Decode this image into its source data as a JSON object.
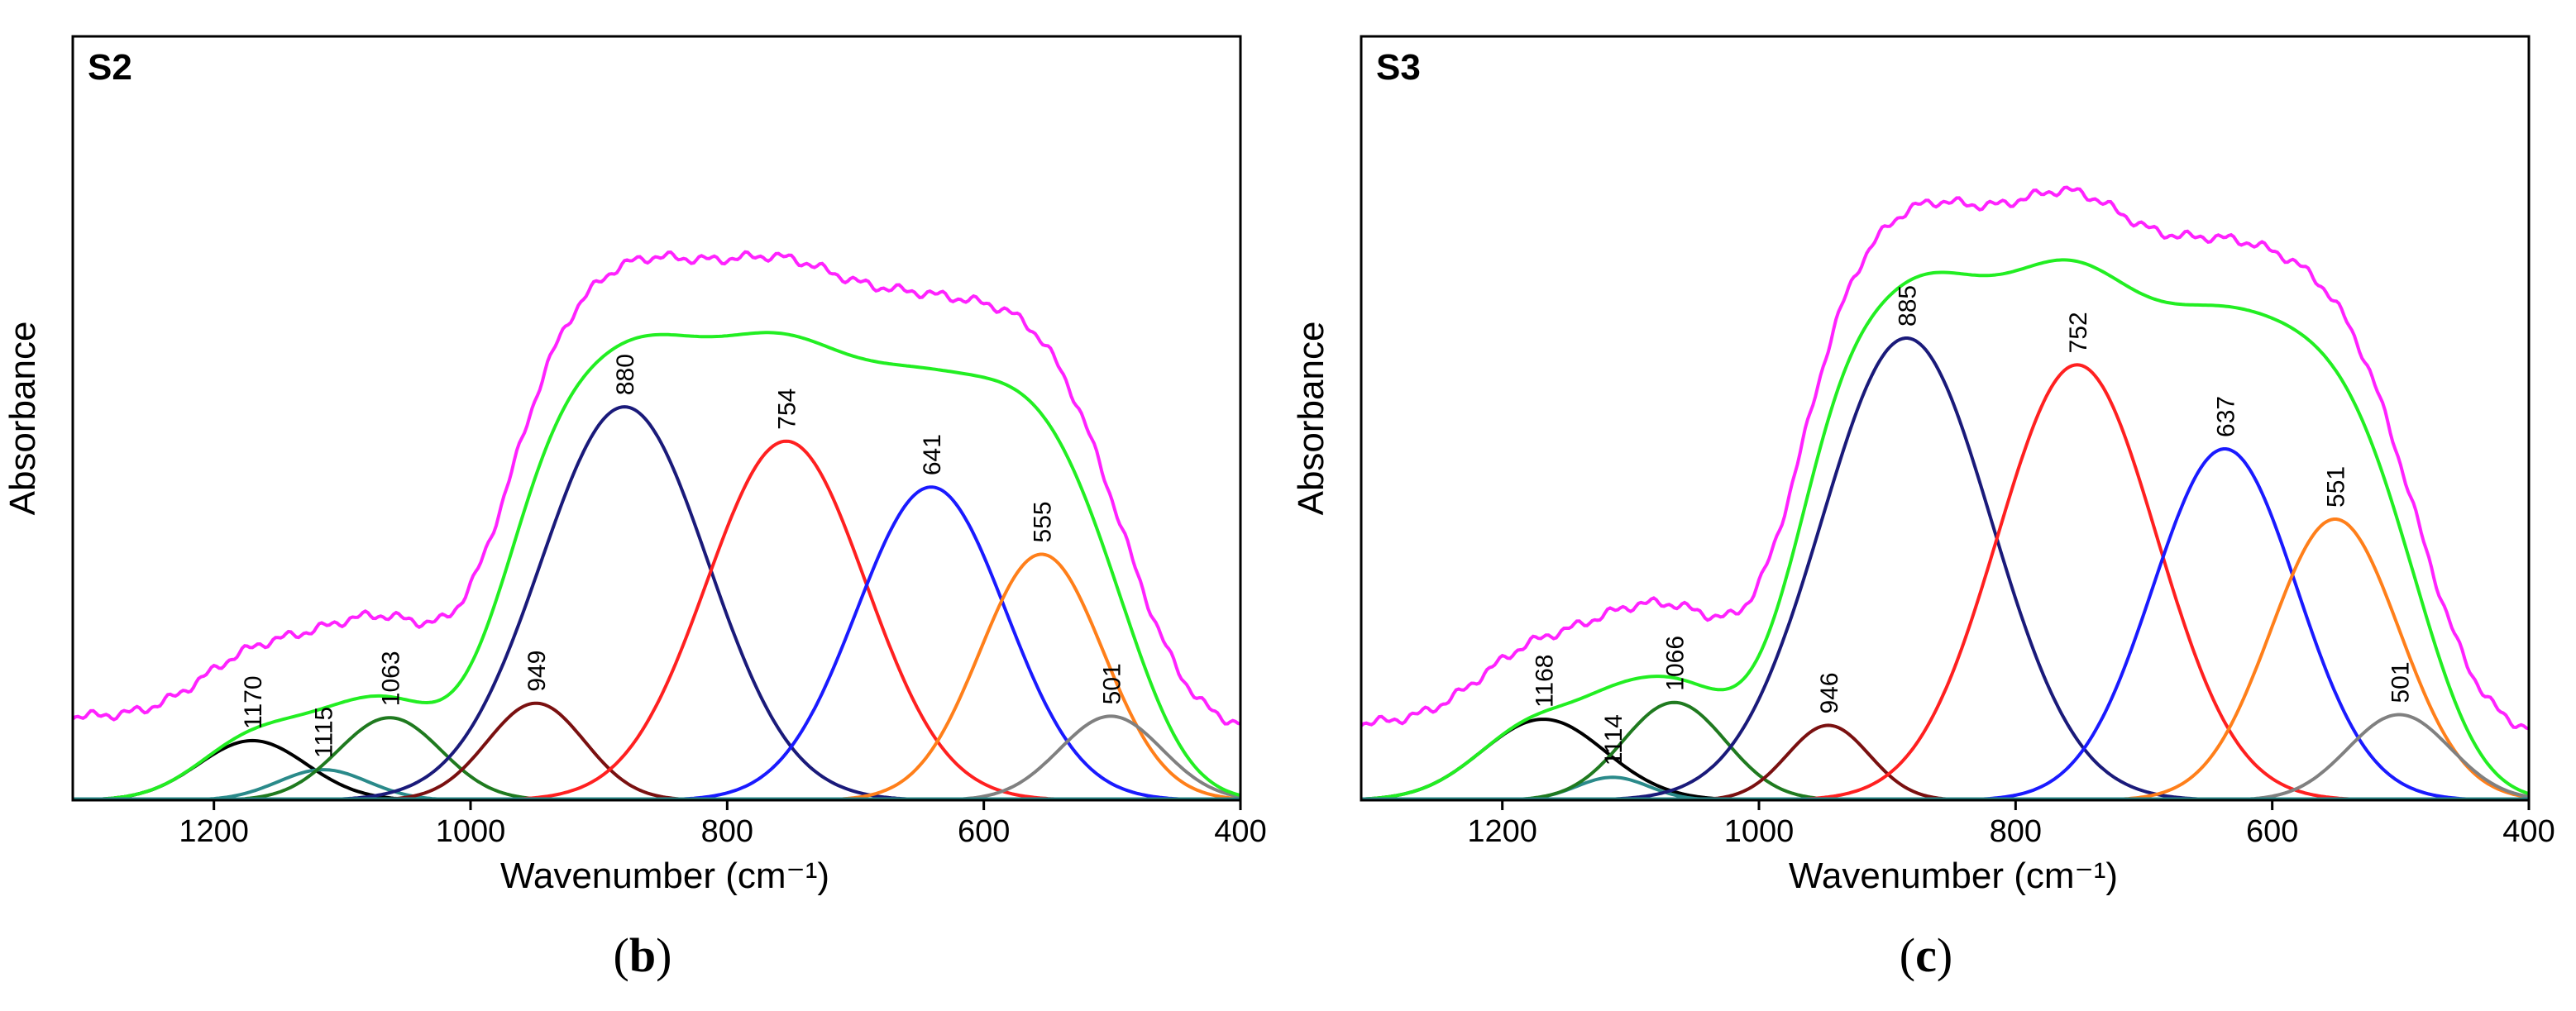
{
  "chart_data": [
    {
      "type": "line",
      "panel_letter": "b",
      "sample_label": "S2",
      "xlabel": "Wavenumber (cm⁻¹)",
      "ylabel": "Absorbance",
      "xlim": [
        1310,
        400
      ],
      "x_reversed": true,
      "xticks": [
        1200,
        1000,
        800,
        600,
        400
      ],
      "ylim": [
        0,
        1.0
      ],
      "grid": false,
      "component_bands": [
        {
          "label": "1170",
          "center": 1170,
          "height": 0.078,
          "sigma": 42,
          "color": "#000000"
        },
        {
          "label": "1115",
          "center": 1115,
          "height": 0.04,
          "sigma": 35,
          "color": "#2a8a8a"
        },
        {
          "label": "1063",
          "center": 1063,
          "height": 0.108,
          "sigma": 40,
          "color": "#1f7a1f"
        },
        {
          "label": "949",
          "center": 949,
          "height": 0.127,
          "sigma": 38,
          "color": "#7a1010"
        },
        {
          "label": "880",
          "center": 880,
          "height": 0.515,
          "sigma": 65,
          "color": "#1a1a7a"
        },
        {
          "label": "754",
          "center": 754,
          "height": 0.47,
          "sigma": 62,
          "color": "#ff2020"
        },
        {
          "label": "641",
          "center": 641,
          "height": 0.41,
          "sigma": 58,
          "color": "#1a1aff"
        },
        {
          "label": "555",
          "center": 555,
          "height": 0.322,
          "sigma": 48,
          "color": "#ff7f1a"
        },
        {
          "label": "501",
          "center": 501,
          "height": 0.11,
          "sigma": 40,
          "color": "#808080"
        }
      ],
      "curves": {
        "fitted_sum_color": "#22ee22",
        "experimental_color": "#ff22ff",
        "experimental_offset": 0.11
      }
    },
    {
      "type": "line",
      "panel_letter": "c",
      "sample_label": "S3",
      "xlabel": "Wavenumber (cm⁻¹)",
      "ylabel": "Absorbance",
      "xlim": [
        1310,
        400
      ],
      "x_reversed": true,
      "xticks": [
        1200,
        1000,
        800,
        600,
        400
      ],
      "ylim": [
        0,
        1.0
      ],
      "grid": false,
      "component_bands": [
        {
          "label": "1168",
          "center": 1168,
          "height": 0.106,
          "sigma": 48,
          "color": "#000000"
        },
        {
          "label": "1114",
          "center": 1114,
          "height": 0.03,
          "sigma": 28,
          "color": "#2a8a8a"
        },
        {
          "label": "1066",
          "center": 1066,
          "height": 0.128,
          "sigma": 40,
          "color": "#1f7a1f"
        },
        {
          "label": "946",
          "center": 946,
          "height": 0.098,
          "sigma": 32,
          "color": "#7a1010"
        },
        {
          "label": "885",
          "center": 885,
          "height": 0.605,
          "sigma": 66,
          "color": "#1a1a7a"
        },
        {
          "label": "752",
          "center": 752,
          "height": 0.57,
          "sigma": 62,
          "color": "#ff2020"
        },
        {
          "label": "637",
          "center": 637,
          "height": 0.46,
          "sigma": 56,
          "color": "#1a1aff"
        },
        {
          "label": "551",
          "center": 551,
          "height": 0.368,
          "sigma": 50,
          "color": "#ff7f1a"
        },
        {
          "label": "501",
          "center": 501,
          "height": 0.112,
          "sigma": 40,
          "color": "#808080"
        }
      ],
      "curves": {
        "fitted_sum_color": "#22ee22",
        "experimental_color": "#ff22ff",
        "experimental_offset": 0.1
      }
    }
  ]
}
